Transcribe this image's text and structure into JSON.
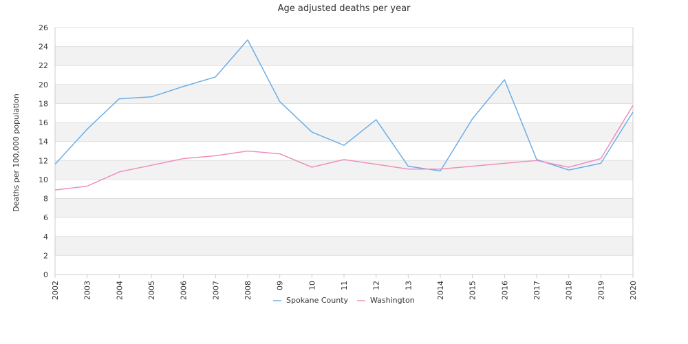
{
  "chart_data": {
    "type": "line",
    "title": "Age adjusted deaths per year",
    "xlabel": "",
    "ylabel": "Deaths per 100,000 population",
    "categories": [
      "2002",
      "2003",
      "2004",
      "2005",
      "2006",
      "2007",
      "2008",
      "09",
      "10",
      "11",
      "12",
      "13",
      "2014",
      "2015",
      "2016",
      "2017",
      "2018",
      "2019",
      "2020"
    ],
    "ylim": [
      0,
      26
    ],
    "yticks": [
      0,
      2,
      4,
      6,
      8,
      10,
      12,
      14,
      16,
      18,
      20,
      22,
      24,
      26
    ],
    "grid": "horizontal alternating bands",
    "legend_position": "bottom-center",
    "series": [
      {
        "name": "Spokane County",
        "color": "#6aaee8",
        "values": [
          11.6,
          15.3,
          18.5,
          18.7,
          19.8,
          20.8,
          24.7,
          18.2,
          15.0,
          13.6,
          16.3,
          11.4,
          10.9,
          16.4,
          20.5,
          12.1,
          11.0,
          11.7,
          17.1
        ]
      },
      {
        "name": "Washington",
        "color": "#ef8fbd",
        "values": [
          8.9,
          9.3,
          10.8,
          11.5,
          12.2,
          12.5,
          13.0,
          12.7,
          11.3,
          12.1,
          11.6,
          11.1,
          11.1,
          11.4,
          11.7,
          12.0,
          11.3,
          12.2,
          17.8
        ]
      }
    ]
  },
  "colors": {
    "band": "#f2f2f2",
    "gridline": "#e0e0e0",
    "axis": "#cccccc"
  }
}
